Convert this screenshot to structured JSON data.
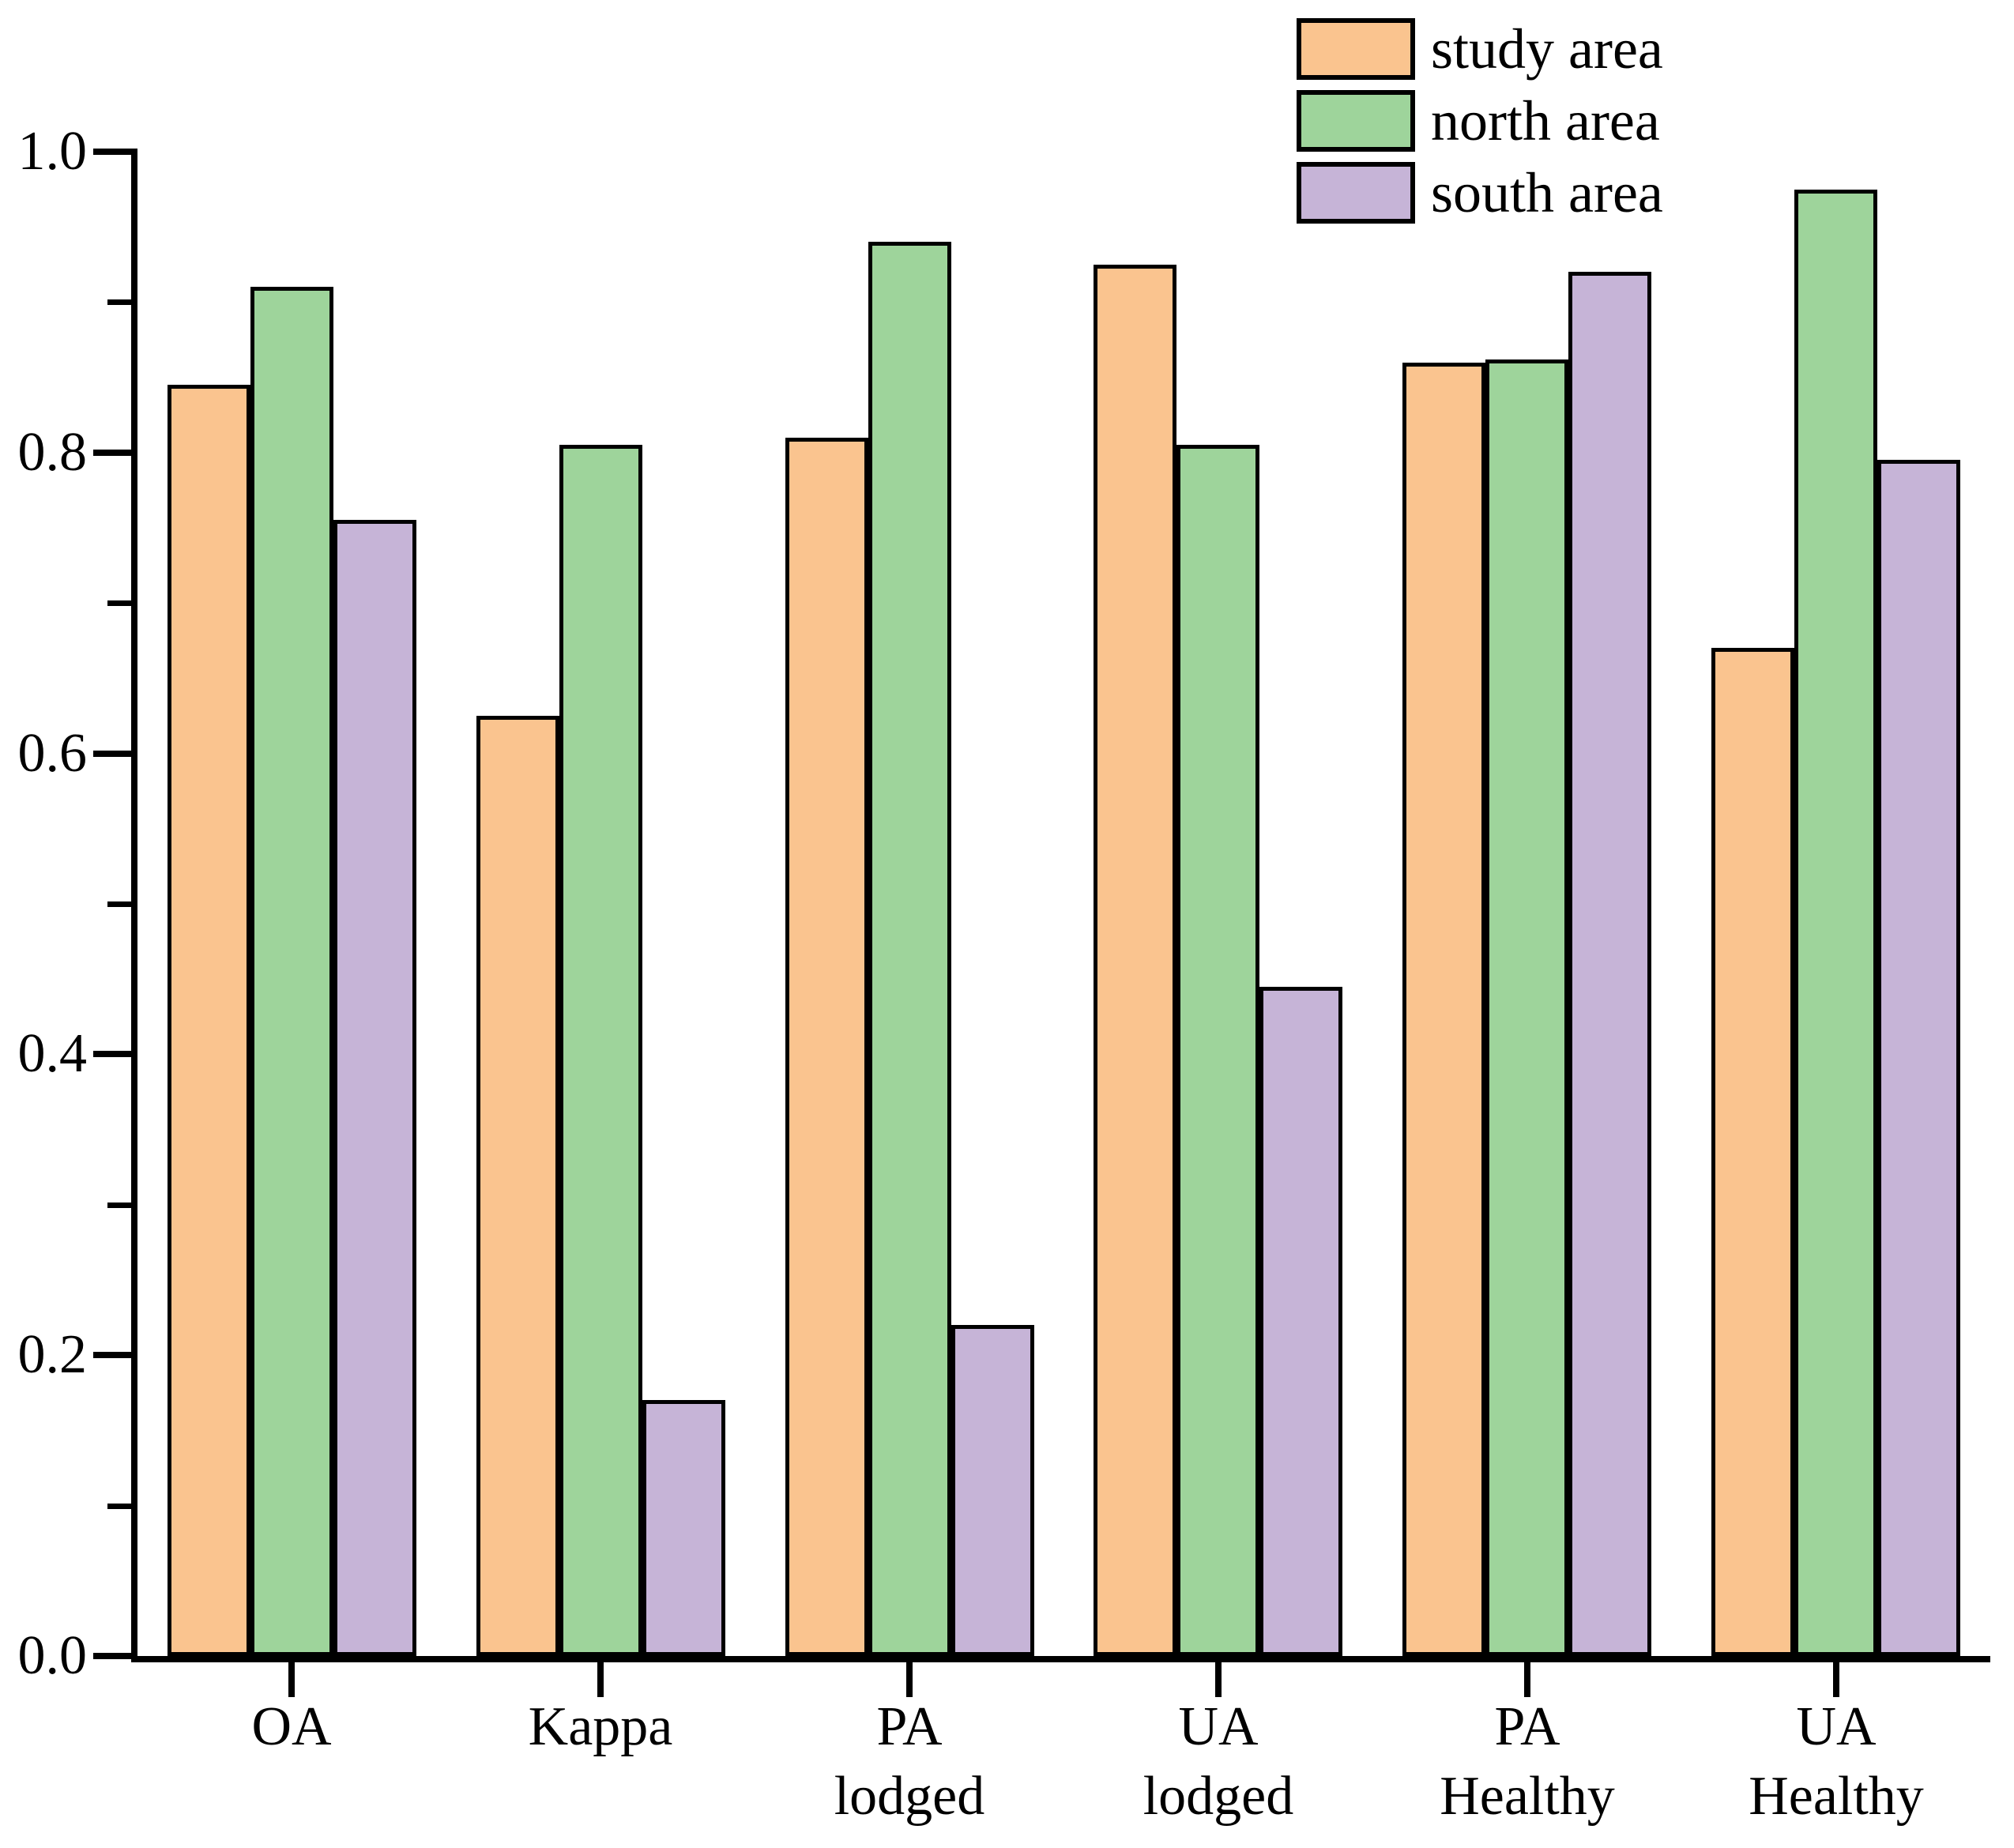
{
  "figure": {
    "background_color": "#ffffff",
    "bar_border_color": "#000000",
    "axis_color": "#000000"
  },
  "legend": {
    "position": "top-right",
    "items": [
      {
        "label": "study area",
        "color": "#FAC48F"
      },
      {
        "label": "north area",
        "color": "#9ED49B"
      },
      {
        "label": "south area",
        "color": "#C6B4D7"
      }
    ]
  },
  "chart_data": {
    "type": "bar",
    "title": "",
    "xlabel": "",
    "ylabel": "",
    "grid": false,
    "legend_position": "top-right",
    "ylim": [
      0.0,
      1.0
    ],
    "yticks": [
      0.0,
      0.2,
      0.4,
      0.6,
      0.8,
      1.0
    ],
    "ytick_labels": [
      "0.0",
      "0.2",
      "0.4",
      "0.6",
      "0.8",
      "1.0"
    ],
    "minor_yticks": [
      0.1,
      0.3,
      0.5,
      0.7,
      0.9
    ],
    "categories": [
      {
        "line1": "OA",
        "line2": ""
      },
      {
        "line1": "Kappa",
        "line2": ""
      },
      {
        "line1": "PA",
        "line2": "lodged"
      },
      {
        "line1": "UA",
        "line2": "lodged"
      },
      {
        "line1": "PA",
        "line2": "Healthy"
      },
      {
        "line1": "UA",
        "line2": "Healthy"
      }
    ],
    "series": [
      {
        "name": "study area",
        "color": "#FAC48F",
        "values": [
          0.845,
          0.625,
          0.81,
          0.925,
          0.86,
          0.67
        ]
      },
      {
        "name": "north area",
        "color": "#9ED49B",
        "values": [
          0.91,
          0.805,
          0.94,
          0.805,
          0.862,
          0.975
        ]
      },
      {
        "name": "south area",
        "color": "#C6B4D7",
        "values": [
          0.755,
          0.17,
          0.22,
          0.445,
          0.92,
          0.795
        ]
      }
    ]
  }
}
